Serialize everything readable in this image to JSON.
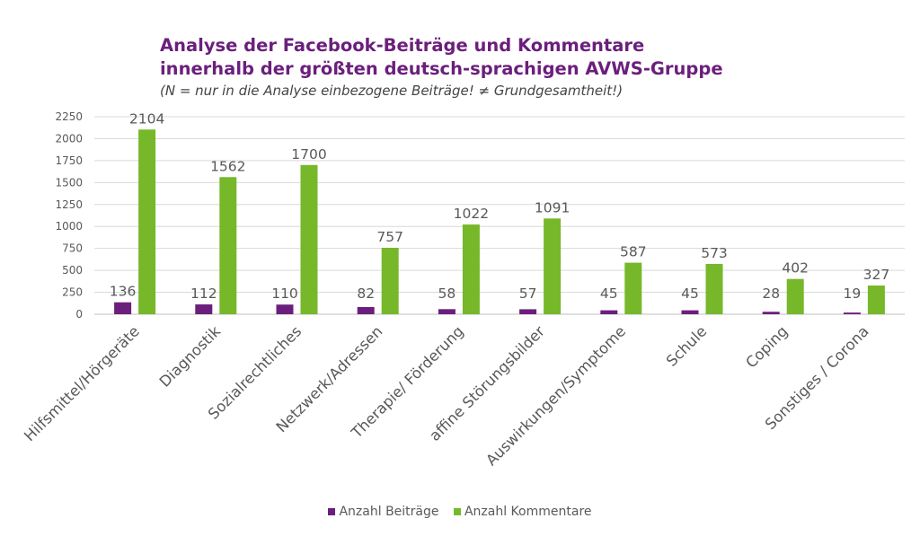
{
  "chart_data": {
    "type": "bar",
    "title": [
      "Analyse der Facebook-Beiträge und Kommentare",
      "innerhalb der größten deutsch-sprachigen AVWS-Gruppe"
    ],
    "subtitle": "(N = nur in die Analyse einbezogene Beiträge! ≠ Grundgesamtheit!)",
    "categories": [
      "Hilfsmittel/Hörgeräte",
      "Diagnostik",
      "Sozialrechtliches",
      "Netzwerk/Adressen",
      "Therapie/ Förderung",
      "affine Störungsbilder",
      "Auswirkungen/Symptome",
      "Schule",
      "Coping",
      "Sonstiges / Corona"
    ],
    "series": [
      {
        "name": "Anzahl Beiträge",
        "color": "#6b1f7c",
        "values": [
          136,
          112,
          110,
          82,
          58,
          57,
          45,
          45,
          28,
          19
        ]
      },
      {
        "name": "Anzahl Kommentare",
        "color": "#76b82a",
        "values": [
          2104,
          1562,
          1700,
          757,
          1022,
          1091,
          587,
          573,
          402,
          327
        ]
      }
    ],
    "yticks": [
      "0",
      "250",
      "500",
      "750",
      "1000",
      "1250",
      "1500",
      "1750",
      "2000",
      "2250"
    ],
    "ylim": [
      0,
      2250
    ],
    "grid": true,
    "legend_position": "bottom"
  }
}
